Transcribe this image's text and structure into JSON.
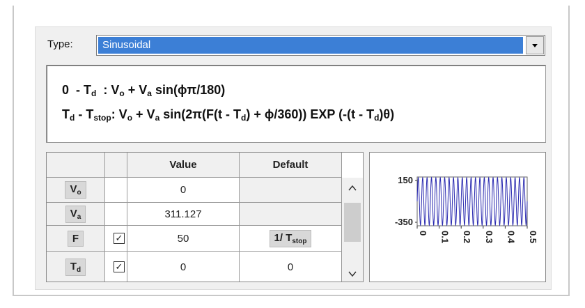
{
  "type_label": "Type:",
  "type_value": "Sinusoidal",
  "formula": [
    [
      {
        "text": "0  - T"
      },
      {
        "sub": "d"
      },
      {
        "text": "  : V"
      },
      {
        "sub": "o"
      },
      {
        "text": " + V"
      },
      {
        "sub": "a"
      },
      {
        "text": " sin(ϕπ/180)"
      }
    ],
    [
      {
        "text": "T"
      },
      {
        "sub": "d"
      },
      {
        "text": " - T"
      },
      {
        "sub": "stop"
      },
      {
        "text": ": V"
      },
      {
        "sub": "o"
      },
      {
        "text": " + V"
      },
      {
        "sub": "a"
      },
      {
        "text": " sin(2π(F(t - T"
      },
      {
        "sub": "d"
      },
      {
        "text": ") + ϕ/360)) EXP (-(t - T"
      },
      {
        "sub": "d"
      },
      {
        "text": ")θ)"
      }
    ]
  ],
  "table": {
    "headers": [
      "Value",
      "Default"
    ],
    "rows": [
      {
        "label": {
          "text": "V",
          "sub": "o"
        },
        "checked": false,
        "value": 0
      },
      {
        "label": {
          "text": "V",
          "sub": "a"
        },
        "checked": false,
        "value": 311.127
      },
      {
        "label": {
          "text": "F"
        },
        "checked": true,
        "value": 50,
        "default": {
          "text": "1/ T",
          "sub": "stop"
        }
      },
      {
        "label": {
          "text": "T",
          "sub": "d"
        },
        "checked": true,
        "value": 0,
        "default": {
          "text": "0"
        }
      }
    ]
  },
  "preview": {
    "yticks": [
      150,
      -350
    ],
    "xticks": [
      0,
      0.1,
      0.2,
      0.3,
      0.4,
      0.5
    ]
  }
}
